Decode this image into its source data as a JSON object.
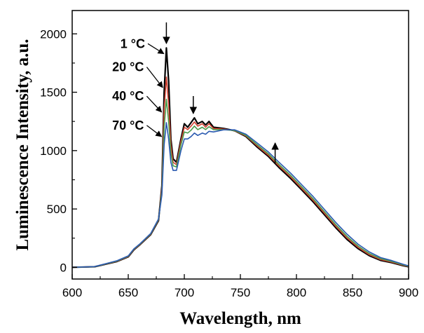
{
  "chart_data": {
    "type": "line",
    "xlabel": "Wavelength, nm",
    "ylabel": "Luminescence Intensity, a.u.",
    "xlim": [
      600,
      900
    ],
    "ylim": [
      -100,
      2200
    ],
    "x_ticks": [
      600,
      650,
      700,
      750,
      800,
      850,
      900
    ],
    "y_ticks": [
      0,
      500,
      1000,
      1500,
      2000
    ],
    "x_tick_labels": [
      "600",
      "650",
      "700",
      "750",
      "800",
      "850",
      "900"
    ],
    "y_tick_labels": [
      "0",
      "500",
      "1000",
      "1500",
      "2000"
    ],
    "grid": false,
    "legend": "none",
    "series": [
      {
        "name": "1 °C",
        "color": "#000000",
        "points": [
          [
            600,
            0
          ],
          [
            620,
            5
          ],
          [
            640,
            50
          ],
          [
            650,
            90
          ],
          [
            655,
            150
          ],
          [
            660,
            190
          ],
          [
            670,
            280
          ],
          [
            677,
            400
          ],
          [
            680,
            700
          ],
          [
            682,
            1500
          ],
          [
            684,
            1880
          ],
          [
            686,
            1600
          ],
          [
            688,
            1100
          ],
          [
            690,
            930
          ],
          [
            693,
            900
          ],
          [
            697,
            1100
          ],
          [
            700,
            1230
          ],
          [
            703,
            1200
          ],
          [
            706,
            1240
          ],
          [
            709,
            1280
          ],
          [
            712,
            1230
          ],
          [
            716,
            1250
          ],
          [
            719,
            1220
          ],
          [
            722,
            1250
          ],
          [
            726,
            1200
          ],
          [
            735,
            1190
          ],
          [
            745,
            1170
          ],
          [
            755,
            1120
          ],
          [
            765,
            1030
          ],
          [
            775,
            950
          ],
          [
            785,
            850
          ],
          [
            795,
            760
          ],
          [
            805,
            660
          ],
          [
            815,
            560
          ],
          [
            825,
            450
          ],
          [
            835,
            340
          ],
          [
            845,
            240
          ],
          [
            855,
            160
          ],
          [
            865,
            100
          ],
          [
            875,
            60
          ],
          [
            885,
            40
          ],
          [
            895,
            15
          ],
          [
            900,
            5
          ]
        ]
      },
      {
        "name": "20 °C",
        "color": "#d04030",
        "points": [
          [
            600,
            0
          ],
          [
            620,
            5
          ],
          [
            640,
            52
          ],
          [
            650,
            92
          ],
          [
            655,
            152
          ],
          [
            660,
            192
          ],
          [
            670,
            283
          ],
          [
            677,
            405
          ],
          [
            680,
            680
          ],
          [
            682,
            1350
          ],
          [
            684,
            1630
          ],
          [
            686,
            1400
          ],
          [
            688,
            1050
          ],
          [
            690,
            900
          ],
          [
            693,
            880
          ],
          [
            697,
            1080
          ],
          [
            700,
            1200
          ],
          [
            703,
            1180
          ],
          [
            706,
            1210
          ],
          [
            709,
            1245
          ],
          [
            712,
            1210
          ],
          [
            716,
            1230
          ],
          [
            719,
            1200
          ],
          [
            722,
            1230
          ],
          [
            726,
            1190
          ],
          [
            735,
            1185
          ],
          [
            745,
            1170
          ],
          [
            755,
            1125
          ],
          [
            765,
            1040
          ],
          [
            775,
            960
          ],
          [
            785,
            862
          ],
          [
            795,
            772
          ],
          [
            805,
            672
          ],
          [
            815,
            572
          ],
          [
            825,
            462
          ],
          [
            835,
            352
          ],
          [
            845,
            252
          ],
          [
            855,
            170
          ],
          [
            865,
            108
          ],
          [
            875,
            66
          ],
          [
            885,
            44
          ],
          [
            895,
            18
          ],
          [
            900,
            7
          ]
        ]
      },
      {
        "name": "40 °C",
        "color": "#4a9a4a",
        "points": [
          [
            600,
            0
          ],
          [
            620,
            5
          ],
          [
            640,
            54
          ],
          [
            650,
            95
          ],
          [
            655,
            155
          ],
          [
            660,
            195
          ],
          [
            670,
            286
          ],
          [
            677,
            410
          ],
          [
            680,
            650
          ],
          [
            682,
            1200
          ],
          [
            684,
            1440
          ],
          [
            686,
            1250
          ],
          [
            688,
            980
          ],
          [
            690,
            870
          ],
          [
            693,
            860
          ],
          [
            697,
            1050
          ],
          [
            700,
            1160
          ],
          [
            703,
            1150
          ],
          [
            706,
            1175
          ],
          [
            709,
            1210
          ],
          [
            712,
            1180
          ],
          [
            716,
            1200
          ],
          [
            719,
            1180
          ],
          [
            722,
            1205
          ],
          [
            726,
            1180
          ],
          [
            735,
            1180
          ],
          [
            745,
            1172
          ],
          [
            755,
            1130
          ],
          [
            765,
            1050
          ],
          [
            775,
            972
          ],
          [
            785,
            876
          ],
          [
            795,
            786
          ],
          [
            805,
            686
          ],
          [
            815,
            586
          ],
          [
            825,
            476
          ],
          [
            835,
            366
          ],
          [
            845,
            266
          ],
          [
            855,
            182
          ],
          [
            865,
            118
          ],
          [
            875,
            74
          ],
          [
            885,
            50
          ],
          [
            895,
            22
          ],
          [
            900,
            9
          ]
        ]
      },
      {
        "name": "70 °C",
        "color": "#2a5ab0",
        "points": [
          [
            600,
            0
          ],
          [
            620,
            6
          ],
          [
            640,
            57
          ],
          [
            650,
            98
          ],
          [
            655,
            158
          ],
          [
            660,
            198
          ],
          [
            670,
            290
          ],
          [
            677,
            415
          ],
          [
            680,
            620
          ],
          [
            682,
            1050
          ],
          [
            684,
            1240
          ],
          [
            686,
            1100
          ],
          [
            688,
            900
          ],
          [
            690,
            830
          ],
          [
            693,
            830
          ],
          [
            697,
            1000
          ],
          [
            700,
            1100
          ],
          [
            703,
            1100
          ],
          [
            706,
            1120
          ],
          [
            709,
            1150
          ],
          [
            712,
            1130
          ],
          [
            716,
            1150
          ],
          [
            719,
            1140
          ],
          [
            722,
            1165
          ],
          [
            726,
            1160
          ],
          [
            735,
            1178
          ],
          [
            745,
            1178
          ],
          [
            755,
            1140
          ],
          [
            765,
            1065
          ],
          [
            775,
            988
          ],
          [
            785,
            895
          ],
          [
            795,
            805
          ],
          [
            805,
            705
          ],
          [
            815,
            605
          ],
          [
            825,
            495
          ],
          [
            835,
            385
          ],
          [
            845,
            285
          ],
          [
            855,
            198
          ],
          [
            865,
            132
          ],
          [
            875,
            84
          ],
          [
            885,
            58
          ],
          [
            895,
            27
          ],
          [
            900,
            12
          ]
        ]
      }
    ],
    "annotations": [
      {
        "text": "1 °C",
        "x": 665,
        "y": 1880,
        "target": [
          683,
          1830
        ]
      },
      {
        "text": "20 °C",
        "x": 664,
        "y": 1680,
        "target": [
          682,
          1540
        ]
      },
      {
        "text": "40 °C",
        "x": 664,
        "y": 1430,
        "target": [
          681,
          1330
        ]
      },
      {
        "text": "70 °C",
        "x": 664,
        "y": 1180,
        "target": [
          681,
          1120
        ]
      }
    ],
    "arrows": [
      {
        "direction": "down",
        "x": 684
      },
      {
        "direction": "down",
        "x": 708
      },
      {
        "direction": "up",
        "x": 781
      }
    ]
  }
}
